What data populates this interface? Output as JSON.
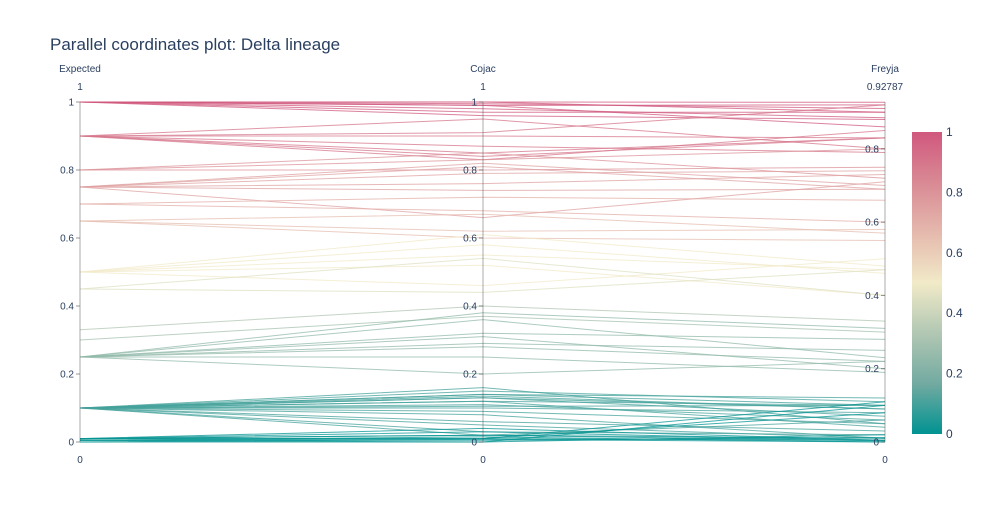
{
  "chart_data": {
    "type": "parallel_coordinates",
    "title": "Parallel coordinates plot: Delta lineage",
    "dimensions": [
      {
        "label": "Expected",
        "range": [
          0,
          1
        ],
        "min_label": "0",
        "max_label": "1",
        "ticks": [
          {
            "v": 0,
            "t": "0"
          },
          {
            "v": 0.2,
            "t": "0.2"
          },
          {
            "v": 0.4,
            "t": "0.4"
          },
          {
            "v": 0.6,
            "t": "0.6"
          },
          {
            "v": 0.8,
            "t": "0.8"
          },
          {
            "v": 1,
            "t": "1"
          }
        ]
      },
      {
        "label": "Cojac",
        "range": [
          0,
          1
        ],
        "min_label": "0",
        "max_label": "1",
        "ticks": [
          {
            "v": 0,
            "t": "0"
          },
          {
            "v": 0.2,
            "t": "0.2"
          },
          {
            "v": 0.4,
            "t": "0.4"
          },
          {
            "v": 0.6,
            "t": "0.6"
          },
          {
            "v": 0.8,
            "t": "0.8"
          },
          {
            "v": 1,
            "t": "1"
          }
        ]
      },
      {
        "label": "Freyja",
        "range": [
          0,
          0.92787
        ],
        "min_label": "0",
        "max_label": "0.92787",
        "ticks": [
          {
            "v": 0,
            "t": "0"
          },
          {
            "v": 0.2,
            "t": "0.2"
          },
          {
            "v": 0.4,
            "t": "0.4"
          },
          {
            "v": 0.6,
            "t": "0.6"
          },
          {
            "v": 0.8,
            "t": "0.8"
          }
        ]
      }
    ],
    "colorscale": [
      "#009392",
      "#72aaa1",
      "#b1c7b3",
      "#f1eac8",
      "#e5b9ad",
      "#d98994",
      "#d0587e"
    ],
    "colorbar": {
      "range": [
        0,
        1
      ],
      "ticks": [
        {
          "v": 0,
          "t": "0"
        },
        {
          "v": 0.2,
          "t": "0.2"
        },
        {
          "v": 0.4,
          "t": "0.4"
        },
        {
          "v": 0.6,
          "t": "0.6"
        },
        {
          "v": 0.8,
          "t": "0.8"
        },
        {
          "v": 1,
          "t": "1"
        }
      ]
    },
    "lines": [
      [
        1,
        1,
        0.927
      ],
      [
        1,
        0.99,
        0.92
      ],
      [
        1,
        0.995,
        0.91
      ],
      [
        1,
        1,
        0.9
      ],
      [
        1,
        0.98,
        0.885
      ],
      [
        1,
        0.97,
        0.9
      ],
      [
        1,
        0.96,
        0.88
      ],
      [
        1,
        0.99,
        0.86
      ],
      [
        0.9,
        0.91,
        0.92
      ],
      [
        0.9,
        0.85,
        0.83
      ],
      [
        0.9,
        0.83,
        0.85
      ],
      [
        0.9,
        0.95,
        0.8
      ],
      [
        0.9,
        0.9,
        0.83
      ],
      [
        0.9,
        0.87,
        0.79
      ],
      [
        0.9,
        0.84,
        0.83
      ],
      [
        0.8,
        0.8,
        0.75
      ],
      [
        0.8,
        0.83,
        0.8
      ],
      [
        0.8,
        0.85,
        0.72
      ],
      [
        0.75,
        0.76,
        0.73
      ],
      [
        0.75,
        0.81,
        0.69
      ],
      [
        0.75,
        0.79,
        0.74
      ],
      [
        0.75,
        0.74,
        0.69
      ],
      [
        0.75,
        0.66,
        0.71
      ],
      [
        0.75,
        0.82,
        0.7
      ],
      [
        0.7,
        0.72,
        0.66
      ],
      [
        0.7,
        0.68,
        0.6
      ],
      [
        0.65,
        0.67,
        0.57
      ],
      [
        0.65,
        0.6,
        0.55
      ],
      [
        0.65,
        0.62,
        0.58
      ],
      [
        0.5,
        0.61,
        0.48
      ],
      [
        0.5,
        0.55,
        0.47
      ],
      [
        0.5,
        0.52,
        0.4
      ],
      [
        0.5,
        0.46,
        0.5
      ],
      [
        0.5,
        0.58,
        0.46
      ],
      [
        0.45,
        0.54,
        0.4
      ],
      [
        0.45,
        0.44,
        0.47
      ],
      [
        0.33,
        0.4,
        0.33
      ],
      [
        0.3,
        0.37,
        0.3
      ],
      [
        0.25,
        0.38,
        0.31
      ],
      [
        0.25,
        0.36,
        0.23
      ],
      [
        0.25,
        0.32,
        0.28
      ],
      [
        0.25,
        0.31,
        0.2
      ],
      [
        0.25,
        0.29,
        0.25
      ],
      [
        0.25,
        0.25,
        0.19
      ],
      [
        0.25,
        0.2,
        0.22
      ],
      [
        0.25,
        0.28,
        0.22
      ],
      [
        0.1,
        0.15,
        0.11
      ],
      [
        0.1,
        0.14,
        0.12
      ],
      [
        0.1,
        0.14,
        0.1
      ],
      [
        0.1,
        0.13,
        0.09
      ],
      [
        0.1,
        0.12,
        0.1
      ],
      [
        0.1,
        0.11,
        0.06
      ],
      [
        0.1,
        0.16,
        0.05
      ],
      [
        0.1,
        0.1,
        0.08
      ],
      [
        0.1,
        0.09,
        0.05
      ],
      [
        0.1,
        0.08,
        0.01
      ],
      [
        0.1,
        0.13,
        0.07
      ],
      [
        0.1,
        0.12,
        0.04
      ],
      [
        0.1,
        0.05,
        0.01
      ],
      [
        0.1,
        0.03,
        0.02
      ],
      [
        0.1,
        0.02,
        0.06
      ],
      [
        0.1,
        0.135,
        0.09
      ],
      [
        0.1,
        0.06,
        0.03
      ],
      [
        0.1,
        0.105,
        0.1
      ],
      [
        0.01,
        0.01,
        0.005
      ],
      [
        0.01,
        0.02,
        0.01
      ],
      [
        0.005,
        0,
        0.1
      ],
      [
        0.005,
        0.01,
        0.08
      ],
      [
        0.01,
        0.03,
        0.004
      ],
      [
        0.005,
        0.015,
        0.0
      ],
      [
        0,
        0,
        0.02
      ],
      [
        0.01,
        0.04,
        0.005
      ],
      [
        0.01,
        0.02,
        0.003
      ],
      [
        0.005,
        0.005,
        0.012
      ],
      [
        0.01,
        0.01,
        0.11
      ],
      [
        0,
        0.008,
        0.0
      ]
    ]
  }
}
